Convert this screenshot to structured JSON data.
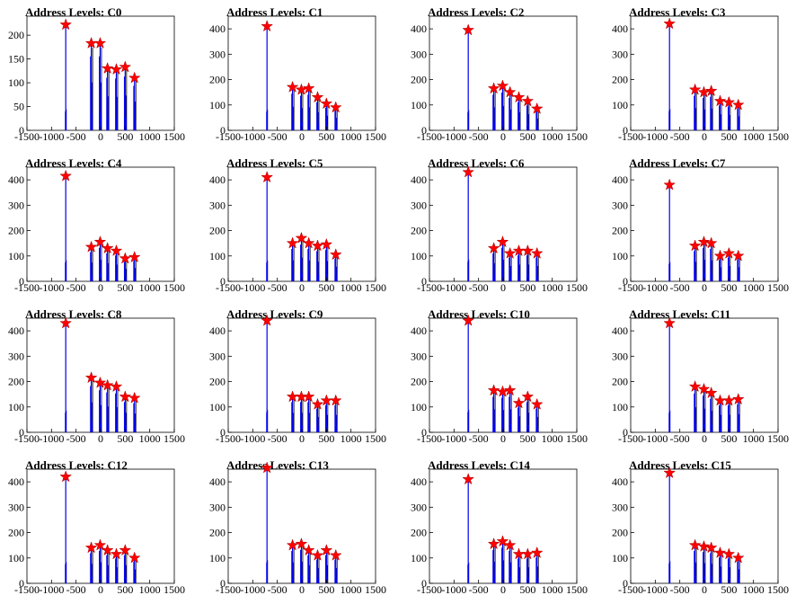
{
  "chart_data": [
    {
      "type": "histogram",
      "title": "Address Levels: C0",
      "xlim": [
        -1500,
        1500
      ],
      "ylim": [
        0,
        240
      ],
      "x_ticks": [
        -1500,
        -1000,
        -500,
        0,
        500,
        1000,
        1500
      ],
      "y_ticks": [
        0,
        50,
        100,
        150,
        200
      ],
      "peaks": [
        {
          "x": -710,
          "y": 222
        },
        {
          "x": -190,
          "y": 183
        },
        {
          "x": -10,
          "y": 183
        },
        {
          "x": 140,
          "y": 130
        },
        {
          "x": 320,
          "y": 128
        },
        {
          "x": 500,
          "y": 133
        },
        {
          "x": 690,
          "y": 110
        }
      ]
    },
    {
      "type": "histogram",
      "title": "Address Levels: C1",
      "xlim": [
        -1500,
        1500
      ],
      "ylim": [
        0,
        450
      ],
      "x_ticks": [
        -1500,
        -1000,
        -500,
        0,
        500,
        1000,
        1500
      ],
      "y_ticks": [
        0,
        100,
        200,
        300,
        400
      ],
      "peaks": [
        {
          "x": -710,
          "y": 410
        },
        {
          "x": -190,
          "y": 170
        },
        {
          "x": -10,
          "y": 160
        },
        {
          "x": 140,
          "y": 165
        },
        {
          "x": 320,
          "y": 130
        },
        {
          "x": 500,
          "y": 105
        },
        {
          "x": 690,
          "y": 90
        }
      ]
    },
    {
      "type": "histogram",
      "title": "Address Levels: C2",
      "xlim": [
        -1500,
        1500
      ],
      "ylim": [
        0,
        450
      ],
      "x_ticks": [
        -1500,
        -1000,
        -500,
        0,
        500,
        1000,
        1500
      ],
      "y_ticks": [
        0,
        100,
        200,
        300,
        400
      ],
      "peaks": [
        {
          "x": -710,
          "y": 395
        },
        {
          "x": -190,
          "y": 165
        },
        {
          "x": -10,
          "y": 175
        },
        {
          "x": 140,
          "y": 150
        },
        {
          "x": 320,
          "y": 130
        },
        {
          "x": 500,
          "y": 115
        },
        {
          "x": 690,
          "y": 85
        }
      ]
    },
    {
      "type": "histogram",
      "title": "Address Levels: C3",
      "xlim": [
        -1500,
        1500
      ],
      "ylim": [
        0,
        450
      ],
      "x_ticks": [
        -1500,
        -1000,
        -500,
        0,
        500,
        1000,
        1500
      ],
      "y_ticks": [
        0,
        100,
        200,
        300,
        400
      ],
      "peaks": [
        {
          "x": -710,
          "y": 420
        },
        {
          "x": -190,
          "y": 160
        },
        {
          "x": -10,
          "y": 150
        },
        {
          "x": 140,
          "y": 155
        },
        {
          "x": 320,
          "y": 115
        },
        {
          "x": 500,
          "y": 110
        },
        {
          "x": 690,
          "y": 100
        }
      ]
    },
    {
      "type": "histogram",
      "title": "Address Levels: C4",
      "xlim": [
        -1500,
        1500
      ],
      "ylim": [
        0,
        450
      ],
      "x_ticks": [
        -1500,
        -1000,
        -500,
        0,
        500,
        1000,
        1500
      ],
      "y_ticks": [
        0,
        100,
        200,
        300,
        400
      ],
      "peaks": [
        {
          "x": -710,
          "y": 415
        },
        {
          "x": -190,
          "y": 135
        },
        {
          "x": -10,
          "y": 155
        },
        {
          "x": 140,
          "y": 130
        },
        {
          "x": 320,
          "y": 120
        },
        {
          "x": 500,
          "y": 90
        },
        {
          "x": 690,
          "y": 95
        }
      ]
    },
    {
      "type": "histogram",
      "title": "Address Levels: C5",
      "xlim": [
        -1500,
        1500
      ],
      "ylim": [
        0,
        450
      ],
      "x_ticks": [
        -1500,
        -1000,
        -500,
        0,
        500,
        1000,
        1500
      ],
      "y_ticks": [
        0,
        100,
        200,
        300,
        400
      ],
      "peaks": [
        {
          "x": -710,
          "y": 410
        },
        {
          "x": -190,
          "y": 150
        },
        {
          "x": -10,
          "y": 170
        },
        {
          "x": 140,
          "y": 150
        },
        {
          "x": 320,
          "y": 140
        },
        {
          "x": 500,
          "y": 145
        },
        {
          "x": 690,
          "y": 105
        }
      ]
    },
    {
      "type": "histogram",
      "title": "Address Levels: C6",
      "xlim": [
        -1500,
        1500
      ],
      "ylim": [
        0,
        450
      ],
      "x_ticks": [
        -1500,
        -1000,
        -500,
        0,
        500,
        1000,
        1500
      ],
      "y_ticks": [
        0,
        100,
        200,
        300,
        400
      ],
      "peaks": [
        {
          "x": -710,
          "y": 430
        },
        {
          "x": -190,
          "y": 130
        },
        {
          "x": -10,
          "y": 155
        },
        {
          "x": 140,
          "y": 110
        },
        {
          "x": 320,
          "y": 120
        },
        {
          "x": 500,
          "y": 120
        },
        {
          "x": 690,
          "y": 110
        }
      ]
    },
    {
      "type": "histogram",
      "title": "Address Levels: C7",
      "xlim": [
        -1500,
        1500
      ],
      "ylim": [
        0,
        450
      ],
      "x_ticks": [
        -1500,
        -1000,
        -500,
        0,
        500,
        1000,
        1500
      ],
      "y_ticks": [
        0,
        100,
        200,
        300,
        400
      ],
      "peaks": [
        {
          "x": -710,
          "y": 380
        },
        {
          "x": -190,
          "y": 140
        },
        {
          "x": -10,
          "y": 155
        },
        {
          "x": 140,
          "y": 150
        },
        {
          "x": 320,
          "y": 100
        },
        {
          "x": 500,
          "y": 110
        },
        {
          "x": 690,
          "y": 100
        }
      ]
    },
    {
      "type": "histogram",
      "title": "Address Levels: C8",
      "xlim": [
        -1500,
        1500
      ],
      "ylim": [
        0,
        450
      ],
      "x_ticks": [
        -1500,
        -1000,
        -500,
        0,
        500,
        1000,
        1500
      ],
      "y_ticks": [
        0,
        100,
        200,
        300,
        400
      ],
      "peaks": [
        {
          "x": -710,
          "y": 430
        },
        {
          "x": -190,
          "y": 215
        },
        {
          "x": -10,
          "y": 195
        },
        {
          "x": 140,
          "y": 185
        },
        {
          "x": 320,
          "y": 180
        },
        {
          "x": 500,
          "y": 140
        },
        {
          "x": 690,
          "y": 135
        }
      ]
    },
    {
      "type": "histogram",
      "title": "Address Levels: C9",
      "xlim": [
        -1500,
        1500
      ],
      "ylim": [
        0,
        450
      ],
      "x_ticks": [
        -1500,
        -1000,
        -500,
        0,
        500,
        1000,
        1500
      ],
      "y_ticks": [
        0,
        100,
        200,
        300,
        400
      ],
      "peaks": [
        {
          "x": -710,
          "y": 440
        },
        {
          "x": -190,
          "y": 140
        },
        {
          "x": -10,
          "y": 140
        },
        {
          "x": 140,
          "y": 140
        },
        {
          "x": 320,
          "y": 110
        },
        {
          "x": 500,
          "y": 125
        },
        {
          "x": 690,
          "y": 125
        }
      ]
    },
    {
      "type": "histogram",
      "title": "Address Levels: C10",
      "xlim": [
        -1500,
        1500
      ],
      "ylim": [
        0,
        450
      ],
      "x_ticks": [
        -1500,
        -1000,
        -500,
        0,
        500,
        1000,
        1500
      ],
      "y_ticks": [
        0,
        100,
        200,
        300,
        400
      ],
      "peaks": [
        {
          "x": -710,
          "y": 440
        },
        {
          "x": -190,
          "y": 165
        },
        {
          "x": -10,
          "y": 160
        },
        {
          "x": 140,
          "y": 165
        },
        {
          "x": 320,
          "y": 115
        },
        {
          "x": 500,
          "y": 140
        },
        {
          "x": 690,
          "y": 110
        }
      ]
    },
    {
      "type": "histogram",
      "title": "Address Levels: C11",
      "xlim": [
        -1500,
        1500
      ],
      "ylim": [
        0,
        450
      ],
      "x_ticks": [
        -1500,
        -1000,
        -500,
        0,
        500,
        1000,
        1500
      ],
      "y_ticks": [
        0,
        100,
        200,
        300,
        400
      ],
      "peaks": [
        {
          "x": -710,
          "y": 430
        },
        {
          "x": -190,
          "y": 180
        },
        {
          "x": -10,
          "y": 170
        },
        {
          "x": 140,
          "y": 155
        },
        {
          "x": 320,
          "y": 125
        },
        {
          "x": 500,
          "y": 125
        },
        {
          "x": 690,
          "y": 130
        }
      ]
    },
    {
      "type": "histogram",
      "title": "Address Levels: C12",
      "xlim": [
        -1500,
        1500
      ],
      "ylim": [
        0,
        450
      ],
      "x_ticks": [
        -1500,
        -1000,
        -500,
        0,
        500,
        1000,
        1500
      ],
      "y_ticks": [
        0,
        100,
        200,
        300,
        400
      ],
      "peaks": [
        {
          "x": -710,
          "y": 420
        },
        {
          "x": -190,
          "y": 140
        },
        {
          "x": -10,
          "y": 150
        },
        {
          "x": 140,
          "y": 130
        },
        {
          "x": 320,
          "y": 115
        },
        {
          "x": 500,
          "y": 130
        },
        {
          "x": 690,
          "y": 100
        }
      ]
    },
    {
      "type": "histogram",
      "title": "Address Levels: C13",
      "xlim": [
        -1500,
        1500
      ],
      "ylim": [
        0,
        450
      ],
      "x_ticks": [
        -1500,
        -1000,
        -500,
        0,
        500,
        1000,
        1500
      ],
      "y_ticks": [
        0,
        100,
        200,
        300,
        400
      ],
      "peaks": [
        {
          "x": -710,
          "y": 455
        },
        {
          "x": -190,
          "y": 150
        },
        {
          "x": -10,
          "y": 155
        },
        {
          "x": 140,
          "y": 130
        },
        {
          "x": 320,
          "y": 110
        },
        {
          "x": 500,
          "y": 130
        },
        {
          "x": 690,
          "y": 110
        }
      ]
    },
    {
      "type": "histogram",
      "title": "Address Levels: C14",
      "xlim": [
        -1500,
        1500
      ],
      "ylim": [
        0,
        450
      ],
      "x_ticks": [
        -1500,
        -1000,
        -500,
        0,
        500,
        1000,
        1500
      ],
      "y_ticks": [
        0,
        100,
        200,
        300,
        400
      ],
      "peaks": [
        {
          "x": -710,
          "y": 410
        },
        {
          "x": -190,
          "y": 155
        },
        {
          "x": -10,
          "y": 165
        },
        {
          "x": 140,
          "y": 150
        },
        {
          "x": 320,
          "y": 115
        },
        {
          "x": 500,
          "y": 115
        },
        {
          "x": 690,
          "y": 120
        }
      ]
    },
    {
      "type": "histogram",
      "title": "Address Levels: C15",
      "xlim": [
        -1500,
        1500
      ],
      "ylim": [
        0,
        450
      ],
      "x_ticks": [
        -1500,
        -1000,
        -500,
        0,
        500,
        1000,
        1500
      ],
      "y_ticks": [
        0,
        100,
        200,
        300,
        400
      ],
      "peaks": [
        {
          "x": -710,
          "y": 435
        },
        {
          "x": -190,
          "y": 150
        },
        {
          "x": -10,
          "y": 145
        },
        {
          "x": 140,
          "y": 140
        },
        {
          "x": 320,
          "y": 120
        },
        {
          "x": 500,
          "y": 115
        },
        {
          "x": 690,
          "y": 100
        }
      ]
    }
  ],
  "style": {
    "histogram_color": "#0000ee",
    "tail_color": "#000000",
    "marker_color": "#ff0000",
    "axis_color": "#000000"
  }
}
